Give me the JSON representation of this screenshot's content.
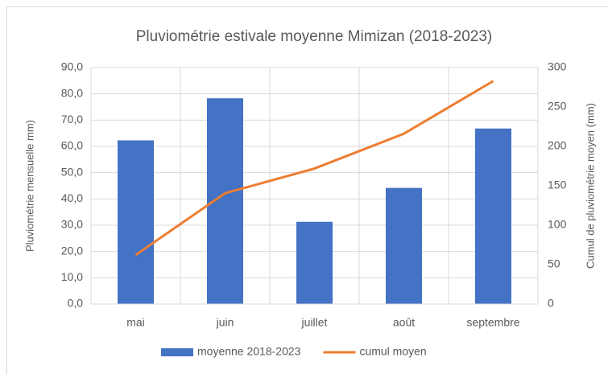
{
  "chart_data": {
    "type": "bar",
    "title": "Pluviométrie estivale moyenne Mimizan (2018-2023)",
    "ylabel": "Pluviométrie mensuelle mm)",
    "y2label": "Cumul de pluviométrie moyen (mm)",
    "categories": [
      "mai",
      "juin",
      "juillet",
      "août",
      "septembre"
    ],
    "series": [
      {
        "name": "moyenne 2018-2023",
        "color": "#4472c4",
        "values": [
          62.3,
          78.3,
          31.3,
          44.2,
          66.8
        ]
      },
      {
        "name": "cumul moyen",
        "color": "#ed7d31",
        "type": "line",
        "axis": "y2",
        "values": [
          62.3,
          140.6,
          171.9,
          216.1,
          282.9
        ]
      }
    ],
    "ylim": [
      0,
      90
    ],
    "yticks": [
      {
        "value": 0,
        "label": "0,0"
      },
      {
        "value": 10,
        "label": "10,0"
      },
      {
        "value": 20,
        "label": "20,0"
      },
      {
        "value": 30,
        "label": "30,0"
      },
      {
        "value": 40,
        "label": "40,0"
      },
      {
        "value": 50,
        "label": "50,0"
      },
      {
        "value": 60,
        "label": "60,0"
      },
      {
        "value": 70,
        "label": "70,0"
      },
      {
        "value": 80,
        "label": "80,0"
      },
      {
        "value": 90,
        "label": "90,0"
      }
    ],
    "y2lim": [
      0,
      300
    ],
    "y2ticks": [
      0,
      50,
      100,
      150,
      200,
      250,
      300
    ],
    "grid": true,
    "legend": "bottom"
  }
}
